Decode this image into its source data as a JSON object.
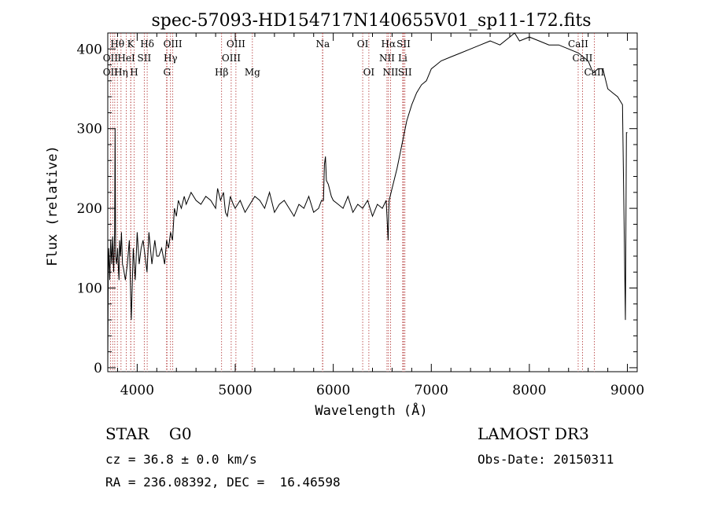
{
  "chart_data": {
    "type": "line",
    "title": "spec-57093-HD154717N140655V01_sp11-172.fits",
    "xlabel": "Wavelength (Å)",
    "ylabel": "Flux (relative)",
    "xlim": [
      3700,
      9100
    ],
    "ylim": [
      -5,
      420
    ],
    "xticks": [
      4000,
      5000,
      6000,
      7000,
      8000,
      9000
    ],
    "yticks": [
      0,
      100,
      200,
      300,
      400
    ],
    "series": [
      {
        "name": "flux",
        "x": [
          3700,
          3705,
          3710,
          3720,
          3730,
          3740,
          3750,
          3760,
          3770,
          3775,
          3780,
          3790,
          3800,
          3810,
          3815,
          3820,
          3830,
          3840,
          3850,
          3860,
          3880,
          3900,
          3920,
          3940,
          3960,
          3980,
          4000,
          4020,
          4040,
          4060,
          4080,
          4100,
          4120,
          4150,
          4180,
          4200,
          4220,
          4250,
          4280,
          4300,
          4320,
          4340,
          4360,
          4380,
          4400,
          4420,
          4450,
          4480,
          4500,
          4550,
          4600,
          4650,
          4700,
          4750,
          4800,
          4820,
          4850,
          4880,
          4900,
          4920,
          4950,
          4980,
          5000,
          5050,
          5100,
          5150,
          5200,
          5250,
          5300,
          5350,
          5400,
          5450,
          5500,
          5550,
          5600,
          5650,
          5700,
          5750,
          5800,
          5850,
          5880,
          5900,
          5910,
          5920,
          5930,
          5950,
          5980,
          6000,
          6050,
          6100,
          6150,
          6200,
          6250,
          6300,
          6350,
          6400,
          6450,
          6500,
          6540,
          6560,
          6565,
          6570,
          6600,
          6650,
          6700,
          6750,
          6800,
          6850,
          6900,
          6950,
          7000,
          7050,
          7100,
          7200,
          7300,
          7400,
          7500,
          7600,
          7700,
          7800,
          7850,
          7900,
          8000,
          8100,
          8200,
          8300,
          8400,
          8500,
          8600,
          8650,
          8700,
          8750,
          8800,
          8850,
          8900,
          8950,
          8980,
          8990,
          9000
        ],
        "values": [
          0,
          120,
          150,
          110,
          160,
          130,
          165,
          120,
          170,
          300,
          140,
          130,
          150,
          120,
          110,
          160,
          140,
          170,
          130,
          125,
          110,
          130,
          160,
          60,
          150,
          110,
          170,
          130,
          150,
          160,
          140,
          120,
          170,
          130,
          160,
          140,
          140,
          150,
          130,
          160,
          150,
          170,
          160,
          200,
          190,
          210,
          200,
          215,
          205,
          220,
          210,
          205,
          215,
          210,
          200,
          225,
          210,
          220,
          195,
          190,
          215,
          205,
          200,
          210,
          195,
          205,
          215,
          210,
          200,
          220,
          195,
          205,
          210,
          200,
          190,
          205,
          200,
          215,
          195,
          200,
          210,
          210,
          255,
          265,
          235,
          230,
          215,
          210,
          205,
          200,
          215,
          195,
          205,
          200,
          210,
          190,
          205,
          200,
          210,
          160,
          195,
          210,
          225,
          250,
          280,
          310,
          330,
          345,
          355,
          360,
          375,
          380,
          385,
          390,
          395,
          400,
          405,
          410,
          405,
          415,
          420,
          410,
          415,
          410,
          405,
          405,
          400,
          395,
          385,
          370,
          375,
          375,
          350,
          345,
          340,
          330,
          60,
          295,
          295
        ]
      }
    ]
  },
  "lines": {
    "top": [
      {
        "label": "Hθ",
        "x": 3798
      },
      {
        "label": "K",
        "x": 3934
      },
      {
        "label": "Hδ",
        "x": 4102
      },
      {
        "label": "OIII",
        "x": 4363
      },
      {
        "label": "OIII",
        "x": 5007
      },
      {
        "label": "Na",
        "x": 5893
      },
      {
        "label": "OI",
        "x": 6300
      },
      {
        "label": "Hα",
        "x": 6563
      },
      {
        "label": "SII",
        "x": 6717
      },
      {
        "label": "CaII",
        "x": 8498
      }
    ],
    "mid": [
      {
        "label": "OII",
        "x": 3727
      },
      {
        "label": "HeI",
        "x": 3889
      },
      {
        "label": "SII",
        "x": 4072
      },
      {
        "label": "Hγ",
        "x": 4340
      },
      {
        "label": "OIII",
        "x": 4959
      },
      {
        "label": "NII",
        "x": 6548
      },
      {
        "label": "Li",
        "x": 6708
      },
      {
        "label": "CaII",
        "x": 8542
      }
    ],
    "low": [
      {
        "label": "OII",
        "x": 3727
      },
      {
        "label": "Hη",
        "x": 3835
      },
      {
        "label": "H",
        "x": 3969
      },
      {
        "label": "G",
        "x": 4304
      },
      {
        "label": "Hβ",
        "x": 4861
      },
      {
        "label": "Mg",
        "x": 5175
      },
      {
        "label": "OI",
        "x": 6363
      },
      {
        "label": "NII",
        "x": 6584
      },
      {
        "label": "SII",
        "x": 6731
      },
      {
        "label": "CaII",
        "x": 8662
      }
    ],
    "extra_x": [
      3750,
      3771,
      3889,
      3935,
      4102,
      4300,
      5890,
      6548,
      6584,
      6716
    ]
  },
  "info": {
    "object": "STAR    G0",
    "cz": "cz = 36.8 ± 0.0 km/s",
    "coords": "RA = 236.08392, DEC =  16.46598",
    "survey": "LAMOST DR3",
    "obs_date": "Obs-Date: 20150311"
  }
}
